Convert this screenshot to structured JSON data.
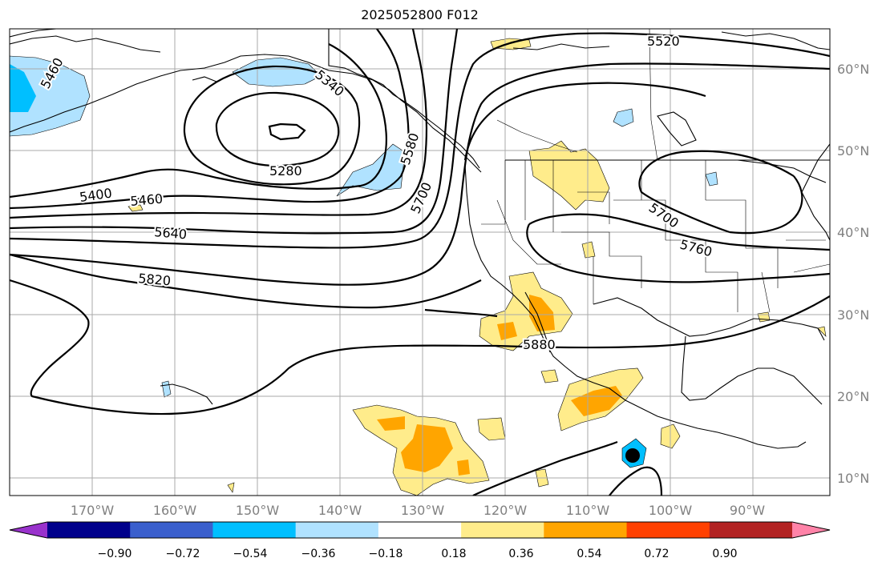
{
  "title": "2025052800 F012",
  "lon_ticks": [
    "170°W",
    "160°W",
    "150°W",
    "140°W",
    "130°W",
    "120°W",
    "110°W",
    "100°W",
    "90°W"
  ],
  "lat_ticks": [
    "60°N",
    "50°N",
    "40°N",
    "30°N",
    "20°N",
    "10°N"
  ],
  "contour_labels": [
    "5520",
    "5460",
    "5340",
    "5280",
    "5580",
    "5400",
    "5460",
    "5700",
    "5640",
    "5820",
    "5700",
    "5760",
    "5880"
  ],
  "colorbar": {
    "ticks": [
      "−0.90",
      "−0.72",
      "−0.54",
      "−0.36",
      "−0.18",
      "0.18",
      "0.36",
      "0.54",
      "0.72",
      "0.90"
    ],
    "colors": [
      "#9932CC",
      "#00008B",
      "#3A5FCD",
      "#00BFFF",
      "#B0E2FF",
      "#FFFFFF",
      "#FFEC8B",
      "#FFA500",
      "#FF4000",
      "#B22222",
      "#FF83A8"
    ]
  },
  "colors": {
    "yellow": "#FFEC8B",
    "orange": "#FFA500",
    "lightblue": "#B0E2FF",
    "blue": "#00BFFF"
  }
}
